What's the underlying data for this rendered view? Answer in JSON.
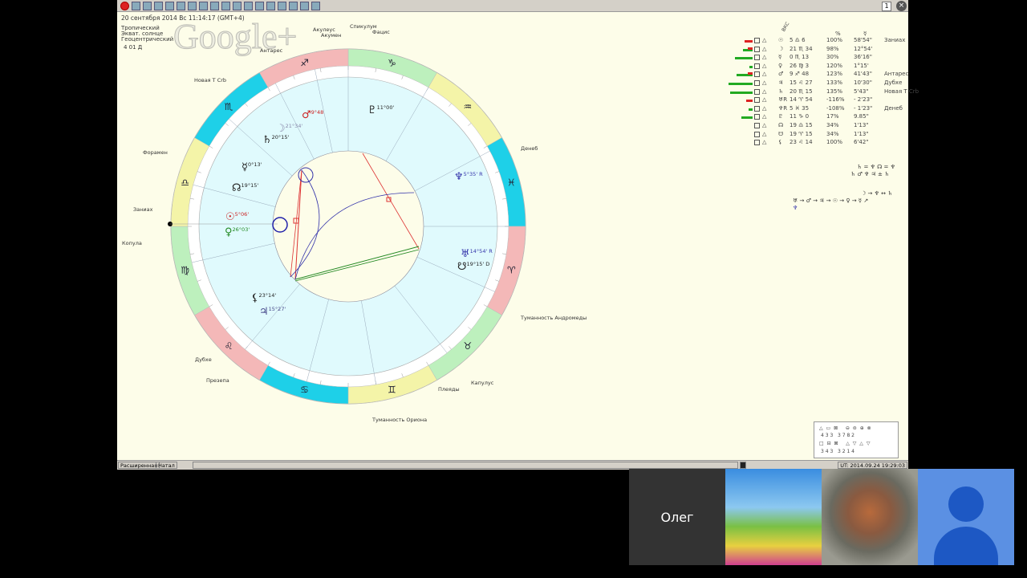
{
  "header": {
    "date": "20 сентября 2014  Вс  11:14:17 (GMT+4)",
    "zodiac": "Тропический",
    "system": "Экват. солнце",
    "center": "Геоцентрический",
    "extra": "4 01 Д"
  },
  "toolbar": {
    "page": "1"
  },
  "watermark": "Google+",
  "stars": [
    "Акулеус",
    "Акумен",
    "Спикулум",
    "Фацис",
    "Антарес",
    "Новая Т Crb",
    "Форамен",
    "Заниах",
    "Копула",
    "Денеб",
    "Туманность Андромеды",
    "Капулус",
    "Плеяды",
    "Туманность Ориона",
    "Дубхе",
    "Презепа"
  ],
  "chart_planets": [
    {
      "glyph": "♂",
      "label": "9°48",
      "color": "#c22"
    },
    {
      "glyph": "☽",
      "label": "21°34'",
      "color": "#88a"
    },
    {
      "glyph": "♄",
      "label": "20°15'",
      "color": "#222"
    },
    {
      "glyph": "☿",
      "label": "0°13'",
      "color": "#222"
    },
    {
      "glyph": "☊",
      "label": "19°15'",
      "color": "#222"
    },
    {
      "glyph": "☉",
      "label": "5°06'",
      "color": "#c22"
    },
    {
      "glyph": "♀",
      "label": "26°03'",
      "color": "#282"
    },
    {
      "glyph": "⚸",
      "label": "23°14'",
      "color": "#222"
    },
    {
      "glyph": "♃",
      "label": "15°27'",
      "color": "#448"
    },
    {
      "glyph": "♇",
      "label": "11°00'",
      "color": "#222"
    },
    {
      "glyph": "♆",
      "label": "5°35' R",
      "color": "#33a"
    },
    {
      "glyph": "♅",
      "label": "14°54' R",
      "color": "#33a"
    },
    {
      "glyph": "☋",
      "label": "19°15' D",
      "color": "#222"
    }
  ],
  "signs": [
    "♑",
    "♒",
    "♓",
    "♈",
    "♉",
    "♊",
    "♋",
    "♌",
    "♍",
    "♎",
    "♏",
    "♐"
  ],
  "sign_colors": {
    "fire": "#f4b8b8",
    "earth": "#bdf0bd",
    "air": "#f4f4a8",
    "water": "#1ed0e8"
  },
  "table": {
    "headers": [
      "ВКС",
      "%",
      "☿"
    ],
    "rows": [
      {
        "glyph": "☉",
        "pos": "5 ♎ 6",
        "pct": "100%",
        "orb": "58'54\"",
        "star": "Заниах",
        "bar": "red",
        "bw": 10
      },
      {
        "glyph": "☽",
        "pos": "21 ♏ 34",
        "pct": "98%",
        "orb": "12°54'",
        "star": "",
        "bar": "mixed",
        "bw": 12
      },
      {
        "glyph": "☿",
        "pos": "0 ♏ 13",
        "pct": "30%",
        "orb": "36'16\"",
        "star": "",
        "bar": "green",
        "bw": 22
      },
      {
        "glyph": "♀",
        "pos": "26 ♍ 3",
        "pct": "120%",
        "orb": "1°15'",
        "star": "",
        "bar": "green",
        "bw": 4
      },
      {
        "glyph": "♂",
        "pos": "9 ♐ 48",
        "pct": "123%",
        "orb": "41'43\"",
        "star": "Антарес",
        "bar": "mixed",
        "bw": 20
      },
      {
        "glyph": "♃",
        "pos": "15 ♌ 27",
        "pct": "133%",
        "orb": "10'30\"",
        "star": "Дубхе",
        "bar": "green",
        "bw": 30
      },
      {
        "glyph": "♄",
        "pos": "20 ♏ 15",
        "pct": "135%",
        "orb": "5'43\"",
        "star": "Новая Т Crb",
        "bar": "green",
        "bw": 28
      },
      {
        "glyph": "♅R",
        "pos": "14 ♈ 54",
        "pct": "-116%",
        "orb": "- 2'23\"",
        "star": "",
        "bar": "red",
        "bw": 8
      },
      {
        "glyph": "♆R",
        "pos": "5 ♓ 35",
        "pct": "-108%",
        "orb": "- 1'23\"",
        "star": "Денеб",
        "bar": "green",
        "bw": 5
      },
      {
        "glyph": "♇",
        "pos": "11 ♑ 0",
        "pct": "17%",
        "orb": "9.85\"",
        "star": "",
        "bar": "green",
        "bw": 14
      },
      {
        "glyph": "☊",
        "pos": "19 ♎ 15",
        "pct": "34%",
        "orb": "1'13\"",
        "star": "",
        "bar": "",
        "bw": 0
      },
      {
        "glyph": "☋",
        "pos": "19 ♈ 15",
        "pct": "34%",
        "orb": "1'13\"",
        "star": "",
        "bar": "",
        "bw": 0
      },
      {
        "glyph": "⚸",
        "pos": "23 ♌ 14",
        "pct": "100%",
        "orb": "6'42\"",
        "star": "",
        "bar": "",
        "bw": 0
      }
    ]
  },
  "rulers": {
    "line1": "♄ = ♆ ☊ = ♆",
    "line2": "♄ ♂ ♆ ♃ ± ♄",
    "line3": "☽ → ♆ ↔ ♄",
    "line4": "♅ → ♂ → ♃ → ☉ → ♀ → ☿ ↗",
    "line5": "♆"
  },
  "aspect_box": {
    "row1": "4 3 3   3 7 8 2",
    "row2": "3 4 3   3 2 1 4"
  },
  "status": {
    "mode": "Расширенная",
    "chart": "Натал",
    "time": "UT: 2014.09.24 19:29:03"
  },
  "video": {
    "participant": "Олег"
  }
}
